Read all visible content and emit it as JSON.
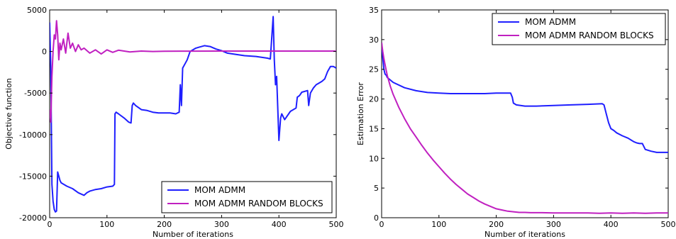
{
  "chart_data": [
    {
      "type": "line",
      "title": "",
      "xlabel": "Number of iterations",
      "ylabel": "Objective function",
      "xlim": [
        0,
        500
      ],
      "ylim": [
        -20000,
        5000
      ],
      "xticks": [
        0,
        100,
        200,
        300,
        400,
        500
      ],
      "yticks": [
        5000,
        0,
        -5000,
        -10000,
        -15000,
        -20000
      ],
      "grid": false,
      "legend_position": "lower-right",
      "series": [
        {
          "name": "MOM ADMM",
          "color": "#1f1fff",
          "x": [
            0,
            2,
            4,
            6,
            8,
            10,
            12,
            14,
            16,
            18,
            20,
            25,
            30,
            40,
            50,
            60,
            65,
            70,
            80,
            90,
            100,
            110,
            113,
            114,
            116,
            120,
            130,
            138,
            142,
            144,
            146,
            150,
            160,
            170,
            180,
            190,
            200,
            210,
            220,
            226,
            228,
            230,
            232,
            236,
            240,
            245,
            250,
            255,
            260,
            270,
            280,
            290,
            300,
            310,
            320,
            340,
            360,
            380,
            385,
            390,
            392,
            394,
            396,
            400,
            403,
            405,
            410,
            420,
            430,
            432,
            436,
            440,
            450,
            452,
            455,
            460,
            465,
            470,
            475,
            480,
            485,
            490,
            495,
            500
          ],
          "values": [
            3500,
            -2000,
            -16000,
            -18000,
            -19000,
            -19300,
            -19200,
            -14500,
            -15000,
            -15500,
            -15800,
            -16000,
            -16200,
            -16500,
            -17000,
            -17300,
            -17000,
            -16800,
            -16600,
            -16500,
            -16300,
            -16200,
            -16000,
            -7500,
            -7300,
            -7500,
            -8000,
            -8500,
            -8600,
            -6500,
            -6200,
            -6500,
            -7000,
            -7100,
            -7300,
            -7400,
            -7400,
            -7400,
            -7500,
            -7300,
            -4000,
            -6500,
            -2000,
            -1500,
            -1000,
            0,
            200,
            400,
            500,
            700,
            600,
            300,
            100,
            -200,
            -300,
            -500,
            -600,
            -800,
            -900,
            4200,
            -1000,
            -4000,
            -3000,
            -10700,
            -8000,
            -7500,
            -8200,
            -7200,
            -6800,
            -5500,
            -5300,
            -4900,
            -4700,
            -6500,
            -5000,
            -4400,
            -4000,
            -3800,
            -3600,
            -3300,
            -2400,
            -1800,
            -1800,
            -2000
          ]
        },
        {
          "name": "MOM ADMM RANDOM BLOCKS",
          "color": "#c020c0",
          "x": [
            0,
            2,
            4,
            6,
            8,
            10,
            12,
            14,
            16,
            18,
            20,
            24,
            28,
            32,
            36,
            40,
            45,
            50,
            55,
            60,
            70,
            80,
            90,
            100,
            110,
            120,
            140,
            160,
            180,
            200,
            250,
            300,
            350,
            400,
            450,
            500
          ],
          "values": [
            -7000,
            -8500,
            -3000,
            0,
            2000,
            1500,
            3700,
            2000,
            -1000,
            1000,
            200,
            1500,
            -200,
            2200,
            400,
            1000,
            0,
            800,
            200,
            400,
            -200,
            200,
            -300,
            200,
            -100,
            150,
            -50,
            50,
            0,
            30,
            40,
            50,
            50,
            50,
            50,
            50
          ]
        }
      ]
    },
    {
      "type": "line",
      "title": "",
      "xlabel": "Number of iterations",
      "ylabel": "Estimation Error",
      "xlim": [
        0,
        500
      ],
      "ylim": [
        0,
        35
      ],
      "xticks": [
        0,
        100,
        200,
        300,
        400,
        500
      ],
      "yticks": [
        0,
        5,
        10,
        15,
        20,
        25,
        30,
        35
      ],
      "grid": false,
      "legend_position": "upper-right",
      "series": [
        {
          "name": "MOM ADMM",
          "color": "#1f1fff",
          "x": [
            0,
            2,
            4,
            6,
            8,
            10,
            20,
            40,
            60,
            80,
            100,
            120,
            150,
            180,
            200,
            210,
            225,
            228,
            230,
            235,
            250,
            270,
            300,
            330,
            360,
            385,
            388,
            392,
            396,
            400,
            405,
            410,
            420,
            430,
            440,
            445,
            450,
            455,
            460,
            470,
            480,
            490,
            500
          ],
          "values": [
            29.5,
            27,
            25,
            24.2,
            24,
            23.6,
            22.8,
            21.9,
            21.4,
            21.1,
            21.0,
            20.9,
            20.9,
            20.9,
            21.0,
            21.0,
            21.0,
            20.3,
            19.3,
            19.0,
            18.8,
            18.8,
            18.9,
            19.0,
            19.1,
            19.2,
            19.0,
            17.5,
            16.0,
            15.0,
            14.7,
            14.3,
            13.8,
            13.4,
            12.8,
            12.6,
            12.5,
            12.5,
            11.5,
            11.2,
            11.0,
            11.0,
            11.0
          ]
        },
        {
          "name": "MOM ADMM RANDOM BLOCKS",
          "color": "#c020c0",
          "x": [
            0,
            2,
            4,
            6,
            8,
            10,
            15,
            20,
            30,
            40,
            50,
            60,
            70,
            80,
            90,
            100,
            110,
            120,
            130,
            140,
            150,
            160,
            170,
            180,
            190,
            200,
            210,
            220,
            230,
            240,
            250,
            260,
            280,
            300,
            320,
            340,
            360,
            380,
            400,
            420,
            440,
            460,
            480,
            500
          ],
          "values": [
            29.5,
            28,
            26.8,
            25.8,
            24.8,
            23.9,
            22.2,
            20.8,
            18.6,
            16.7,
            15.0,
            13.6,
            12.2,
            10.9,
            9.7,
            8.6,
            7.5,
            6.5,
            5.6,
            4.8,
            4.0,
            3.4,
            2.8,
            2.3,
            1.9,
            1.5,
            1.3,
            1.1,
            1.0,
            0.9,
            0.9,
            0.85,
            0.85,
            0.8,
            0.8,
            0.8,
            0.8,
            0.75,
            0.8,
            0.75,
            0.8,
            0.75,
            0.8,
            0.8
          ]
        }
      ]
    }
  ]
}
